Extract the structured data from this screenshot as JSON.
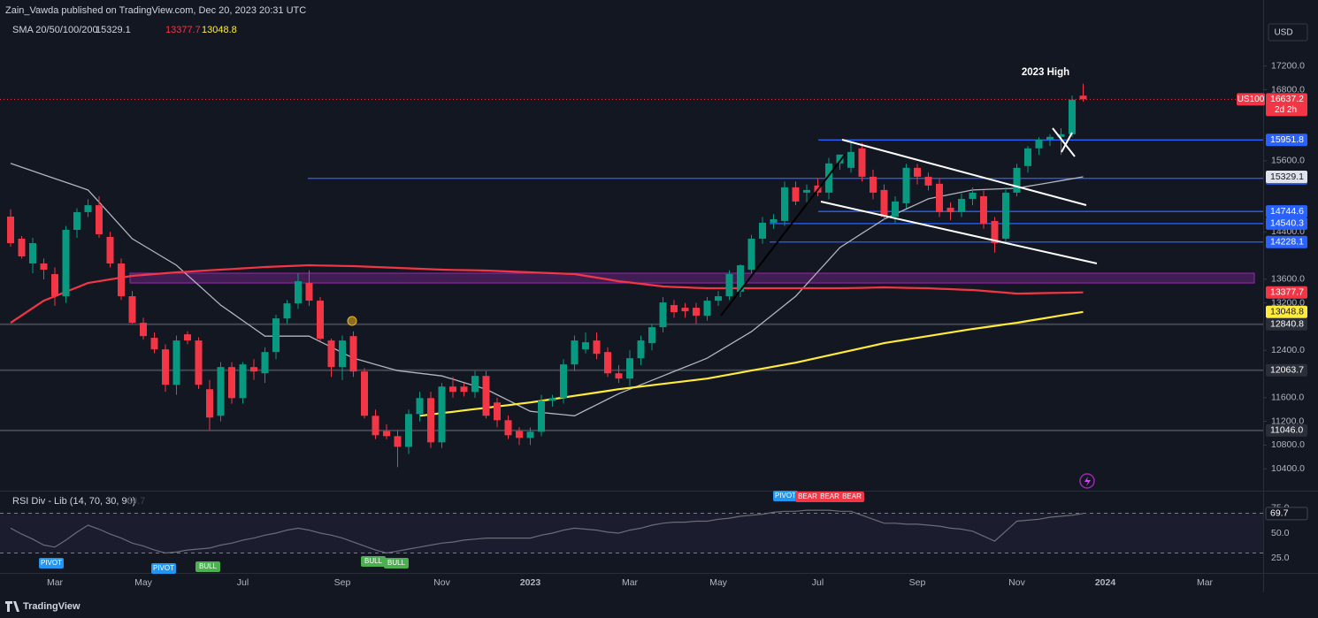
{
  "header": {
    "publisher": "Zain_Vawda published on TradingView.com, Dec 20, 2023 20:31 UTC"
  },
  "chart_data": {
    "type": "candlestick",
    "symbol": "US100",
    "currency": "USD",
    "countdown": "2d 2h",
    "indicator_label": "SMA 20/50/100/200",
    "annotation": "2023 High",
    "up_color": "#089981",
    "down_color": "#f23645",
    "ylim": [
      10000,
      18300
    ],
    "yticks": [
      {
        "value": 17200,
        "label": "17200.0"
      },
      {
        "value": 16800,
        "label": "16800.0"
      },
      {
        "value": 15600,
        "label": "15600.0"
      },
      {
        "value": 14400,
        "label": "14400.0"
      },
      {
        "value": 13600,
        "label": "13600.0"
      },
      {
        "value": 13200,
        "label": "13200.0"
      },
      {
        "value": 12400,
        "label": "12400.0"
      },
      {
        "value": 11600,
        "label": "11600.0"
      },
      {
        "value": 11200,
        "label": "11200.0"
      },
      {
        "value": 10800,
        "label": "10800.0"
      },
      {
        "value": 10400,
        "label": "10400.0"
      }
    ],
    "grid": false,
    "categories": [
      null,
      null,
      null,
      null,
      "Mar",
      null,
      null,
      null,
      null,
      null,
      null,
      null,
      "May",
      null,
      null,
      null,
      null,
      null,
      null,
      null,
      null,
      "Jul",
      null,
      null,
      null,
      null,
      null,
      null,
      null,
      null,
      "Sep",
      null,
      null,
      null,
      null,
      null,
      null,
      null,
      null,
      "Nov",
      null,
      null,
      null,
      null,
      null,
      null,
      null,
      "2023",
      null,
      null,
      null,
      null,
      null,
      null,
      null,
      null,
      "Mar",
      null,
      null,
      null,
      null,
      null,
      null,
      null,
      "May",
      null,
      null,
      null,
      null,
      null,
      null,
      null,
      null,
      "Jul",
      null,
      null,
      null,
      null,
      null,
      null,
      null,
      null,
      "Sep",
      null,
      null,
      null,
      null,
      null,
      null,
      null,
      null,
      "Nov",
      null,
      null,
      null,
      null,
      null,
      null,
      null,
      "2024",
      null,
      null,
      null,
      null,
      null,
      null,
      null,
      null,
      "Mar",
      null,
      null,
      null,
      null
    ],
    "ohlc": [
      [
        14658,
        14780,
        14150,
        14210
      ],
      [
        14285,
        14330,
        13950,
        13986
      ],
      [
        13866,
        14300,
        13700,
        14210
      ],
      [
        13866,
        13950,
        13600,
        13762
      ],
      [
        13687,
        13800,
        13150,
        13313
      ],
      [
        13313,
        14500,
        13200,
        14434
      ],
      [
        14434,
        14800,
        14300,
        14733
      ],
      [
        14733,
        14950,
        14650,
        14850
      ],
      [
        14850,
        15000,
        14300,
        14360
      ],
      [
        14315,
        14400,
        13800,
        13866
      ],
      [
        13866,
        13950,
        13250,
        13313
      ],
      [
        13313,
        13400,
        12850,
        12865
      ],
      [
        12865,
        12950,
        12580,
        12640
      ],
      [
        12611,
        12700,
        12350,
        12416
      ],
      [
        12416,
        12500,
        11700,
        11818
      ],
      [
        11818,
        12650,
        11650,
        12566
      ],
      [
        12670,
        12720,
        12500,
        12566
      ],
      [
        12566,
        12620,
        11750,
        11818
      ],
      [
        11743,
        11900,
        11050,
        11265
      ],
      [
        11295,
        12200,
        11200,
        12117
      ],
      [
        12117,
        12200,
        11500,
        11593
      ],
      [
        11593,
        12200,
        11500,
        12162
      ],
      [
        12117,
        12250,
        11900,
        12042
      ],
      [
        12012,
        12450,
        11850,
        12371
      ],
      [
        12371,
        13000,
        12250,
        12939
      ],
      [
        12939,
        13250,
        12850,
        13193
      ],
      [
        13193,
        13700,
        13100,
        13567
      ],
      [
        13537,
        13750,
        13150,
        13238
      ],
      [
        13238,
        13300,
        12550,
        12596
      ],
      [
        12566,
        12600,
        11950,
        12117
      ],
      [
        12117,
        12650,
        11900,
        12566
      ],
      [
        12640,
        12720,
        11950,
        12042
      ],
      [
        12042,
        12100,
        11250,
        11295
      ],
      [
        11295,
        11400,
        10900,
        10966
      ],
      [
        11040,
        11150,
        10900,
        10951
      ],
      [
        10951,
        11050,
        10428,
        10771
      ],
      [
        10771,
        11400,
        10650,
        11324
      ],
      [
        11324,
        11700,
        11200,
        11593
      ],
      [
        11593,
        11700,
        10750,
        10846
      ],
      [
        10846,
        11850,
        10750,
        11788
      ],
      [
        11788,
        11950,
        11600,
        11698
      ],
      [
        11788,
        11850,
        11620,
        11698
      ],
      [
        11698,
        12050,
        11600,
        11968
      ],
      [
        11968,
        12050,
        11250,
        11295
      ],
      [
        11519,
        11600,
        11100,
        11220
      ],
      [
        11220,
        11300,
        10900,
        10966
      ],
      [
        11040,
        11100,
        10800,
        10921
      ],
      [
        10921,
        11100,
        10800,
        11025
      ],
      [
        11025,
        11650,
        10950,
        11548
      ],
      [
        11548,
        11650,
        11450,
        11593
      ],
      [
        11593,
        12250,
        11500,
        12162
      ],
      [
        12162,
        12650,
        12050,
        12566
      ],
      [
        12416,
        12700,
        12350,
        12536
      ],
      [
        12566,
        12700,
        12250,
        12341
      ],
      [
        12371,
        12450,
        11950,
        12012
      ],
      [
        12012,
        12150,
        11850,
        11923
      ],
      [
        11923,
        12400,
        11800,
        12267
      ],
      [
        12267,
        12650,
        12150,
        12566
      ],
      [
        12521,
        12850,
        12400,
        12790
      ],
      [
        12790,
        13300,
        12700,
        13208
      ],
      [
        13164,
        13250,
        12950,
        13044
      ],
      [
        13119,
        13200,
        12950,
        13059
      ],
      [
        13119,
        13200,
        12850,
        12984
      ],
      [
        12984,
        13300,
        12900,
        13238
      ],
      [
        13238,
        13400,
        13150,
        13313
      ],
      [
        13313,
        13750,
        13250,
        13687
      ],
      [
        13388,
        13850,
        13300,
        13836
      ],
      [
        13762,
        14350,
        13700,
        14285
      ],
      [
        14285,
        14650,
        14200,
        14554
      ],
      [
        14554,
        14700,
        14450,
        14614
      ],
      [
        14584,
        15250,
        14500,
        15152
      ],
      [
        15152,
        15250,
        14850,
        14913
      ],
      [
        15062,
        15200,
        14900,
        15107
      ],
      [
        15182,
        15300,
        15000,
        15062
      ],
      [
        15062,
        15650,
        14950,
        15556
      ],
      [
        15556,
        15700,
        15450,
        15705
      ],
      [
        15481,
        15900,
        15400,
        15750
      ],
      [
        15810,
        15900,
        15250,
        15331
      ],
      [
        15331,
        15450,
        14950,
        15062
      ],
      [
        15107,
        15200,
        14600,
        14658
      ],
      [
        14658,
        15000,
        14550,
        14913
      ],
      [
        14883,
        15550,
        14800,
        15481
      ],
      [
        15481,
        15550,
        15200,
        15331
      ],
      [
        15331,
        15400,
        15100,
        15182
      ],
      [
        15212,
        15300,
        14650,
        14733
      ],
      [
        14808,
        14900,
        14600,
        14733
      ],
      [
        14733,
        15050,
        14650,
        14957
      ],
      [
        14957,
        15150,
        14850,
        15062
      ],
      [
        15002,
        15100,
        14450,
        14539
      ],
      [
        14584,
        14650,
        14050,
        14210
      ],
      [
        14285,
        15150,
        14200,
        15062
      ],
      [
        15062,
        15550,
        15000,
        15481
      ],
      [
        15511,
        15850,
        15400,
        15810
      ],
      [
        15810,
        16000,
        15700,
        15959
      ],
      [
        15959,
        16050,
        15850,
        16004
      ],
      [
        16004,
        16150,
        15700,
        16049
      ],
      [
        16049,
        16700,
        16000,
        16632
      ],
      [
        16700,
        16900,
        16600,
        16637.2
      ],
      null,
      null,
      null,
      null,
      null,
      null,
      null,
      null,
      null,
      null,
      null,
      null,
      null,
      null,
      null
    ],
    "series": [
      {
        "color": "#b2b5be",
        "values": [
          15556,
          15492,
          15428,
          15364,
          15300,
          15236,
          15172,
          15107,
          14902,
          14696,
          14491,
          14285,
          14173,
          14061,
          13948,
          13836,
          13668,
          13500,
          13332,
          13164,
          13033,
          12902,
          12771,
          12640,
          12640,
          12640,
          12640,
          12640,
          12547,
          12454,
          12360,
          12267,
          12215,
          12162,
          12110,
          12057,
          12035,
          12013,
          11990,
          11968,
          11912,
          11856,
          11799,
          11743,
          11650,
          11557,
          11463,
          11370,
          11351,
          11332,
          11314,
          11295,
          11388,
          11481,
          11575,
          11668,
          11743,
          11818,
          11893,
          11968,
          12043,
          12118,
          12192,
          12267,
          12379,
          12491,
          12603,
          12715,
          12865,
          13014,
          13164,
          13313,
          13518,
          13724,
          13929,
          14135,
          14255,
          14375,
          14494,
          14614,
          14700,
          14786,
          14871,
          14957,
          14995,
          15032,
          15070,
          15107,
          15115,
          15122,
          15130,
          15137,
          15169,
          15201,
          15233,
          15265,
          15297,
          15329.1,
          null,
          null,
          null,
          null,
          null,
          null,
          null,
          null,
          null,
          null,
          null,
          null,
          null,
          null,
          null
        ]
      },
      {
        "color": "#f23645",
        "values": [
          12865,
          12989,
          13114,
          13238,
          13313,
          13388,
          13462,
          13537,
          13567,
          13597,
          13627,
          13657,
          13672,
          13687,
          13702,
          13717,
          13728,
          13739,
          13751,
          13762,
          13773,
          13784,
          13795,
          13806,
          13814,
          13821,
          13829,
          13836,
          13832,
          13829,
          13825,
          13821,
          13814,
          13806,
          13799,
          13791,
          13784,
          13777,
          13769,
          13762,
          13758,
          13754,
          13751,
          13747,
          13740,
          13732,
          13725,
          13717,
          13710,
          13702,
          13695,
          13687,
          13657,
          13627,
          13597,
          13567,
          13545,
          13523,
          13500,
          13478,
          13470,
          13463,
          13455,
          13448,
          13448,
          13448,
          13448,
          13448,
          13448,
          13448,
          13448,
          13448,
          13448,
          13448,
          13448,
          13448,
          13452,
          13455,
          13459,
          13463,
          13459,
          13455,
          13452,
          13448,
          13440,
          13433,
          13425,
          13418,
          13403,
          13388,
          13373,
          13358,
          13361,
          13365,
          13368,
          13371,
          13374,
          13377.7,
          null,
          null,
          null,
          null,
          null,
          null,
          null,
          null,
          null,
          null,
          null,
          null,
          null,
          null,
          null
        ]
      },
      {
        "color": "#ffeb3b",
        "values": [
          null,
          null,
          null,
          null,
          null,
          null,
          null,
          null,
          null,
          null,
          null,
          null,
          null,
          null,
          null,
          null,
          null,
          null,
          null,
          null,
          null,
          null,
          null,
          null,
          null,
          null,
          null,
          null,
          null,
          null,
          null,
          null,
          null,
          null,
          null,
          null,
          null,
          11295,
          11317,
          11340,
          11362,
          11385,
          11407,
          11429,
          11452,
          11474,
          11497,
          11519,
          11547,
          11575,
          11603,
          11631,
          11659,
          11687,
          11715,
          11743,
          11766,
          11788,
          11811,
          11833,
          11856,
          11878,
          11901,
          11923,
          11957,
          11990,
          12024,
          12058,
          12091,
          12125,
          12158,
          12192,
          12233,
          12274,
          12315,
          12356,
          12397,
          12438,
          12480,
          12521,
          12551,
          12581,
          12611,
          12641,
          12670,
          12700,
          12730,
          12760,
          12786,
          12813,
          12839,
          12865,
          12896,
          12926,
          12957,
          12988,
          13018,
          13048.8,
          null,
          null,
          null,
          null,
          null,
          null,
          null,
          null,
          null,
          null,
          null,
          null,
          null,
          null,
          null
        ]
      }
    ],
    "zone": [
      13537,
      13702
    ],
    "levels": [
      {
        "value": 15951.8,
        "color": "#2962ff"
      },
      {
        "value": 15303.3,
        "color": "#2962ff"
      },
      {
        "value": 14744.6,
        "color": "#2962ff"
      },
      {
        "value": 14540.3,
        "color": "#2962ff"
      },
      {
        "value": 14245.7,
        "color": "#131722"
      },
      {
        "value": 14228.1,
        "color": "#2962ff"
      },
      {
        "value": 12840.8,
        "color": "#434651"
      },
      {
        "value": 12063.7,
        "color": "#434651"
      },
      {
        "value": 11046,
        "label": "11046.0",
        "color": "#434651"
      }
    ],
    "rsi": {
      "title": "RSI Div - Lib (14, 70, 30, 90)",
      "color": "#6a6d78",
      "ylim": [
        10,
        90
      ],
      "yticks": [
        {
          "value": 75,
          "label": "75.0"
        },
        {
          "value": 50,
          "label": "50.0"
        },
        {
          "value": 25,
          "label": "25.0"
        }
      ],
      "bands": [
        70,
        30
      ],
      "values": [
        55,
        49,
        44,
        38,
        36,
        43,
        51,
        58,
        54,
        49,
        45,
        40,
        37,
        33,
        30,
        31,
        33,
        34,
        35,
        38,
        40,
        43,
        45,
        48,
        50,
        53,
        55,
        53,
        50,
        48,
        45,
        41,
        37,
        33,
        30,
        32,
        34,
        36,
        38,
        40,
        41,
        43,
        44,
        45,
        45,
        45,
        45,
        45,
        48,
        50,
        53,
        55,
        54,
        53,
        51,
        50,
        53,
        55,
        58,
        60,
        61,
        61,
        62,
        62,
        64,
        65,
        67,
        68,
        69,
        71,
        72,
        72,
        73,
        73,
        73,
        72,
        72,
        68,
        64,
        60,
        60,
        59,
        59,
        58,
        57,
        55,
        54,
        52,
        47,
        42,
        52,
        62,
        63,
        64,
        66,
        67,
        68,
        69.7,
        null,
        null,
        null,
        null,
        null,
        null,
        null,
        null,
        null,
        null,
        null,
        null,
        null,
        null,
        null
      ],
      "signals": [
        "PIVOT",
        "PIVOT",
        "BULL",
        "BULL",
        "BULL",
        "PIVOT",
        "BEAR",
        "BEAR",
        "BEAR"
      ]
    }
  },
  "footer": {
    "brand": "TradingView"
  }
}
